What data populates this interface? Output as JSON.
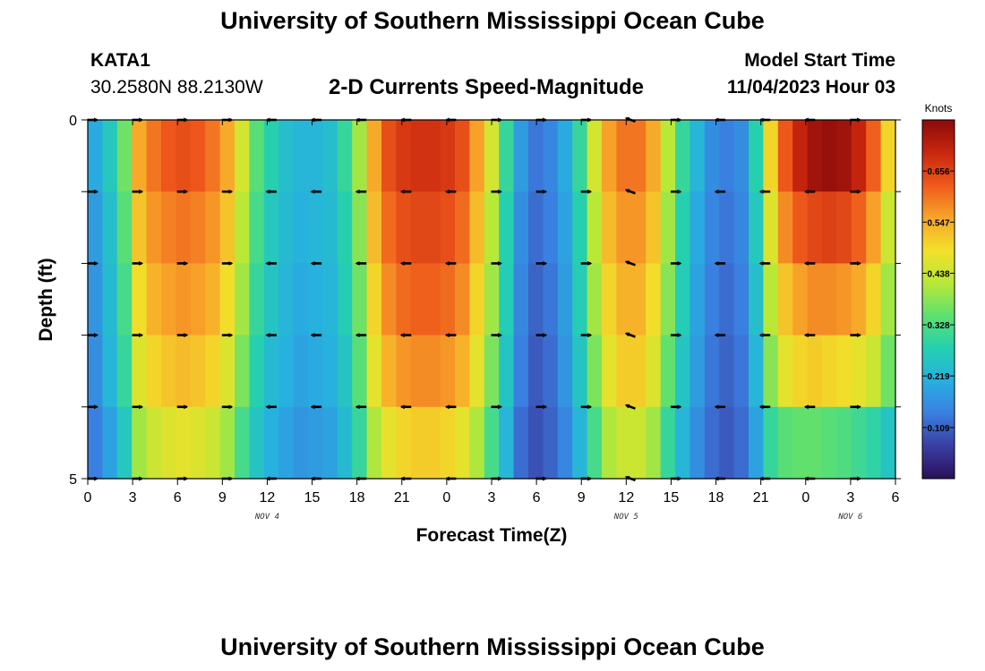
{
  "header": {
    "title": "University of Southern Mississippi Ocean Cube",
    "station": "KATA1",
    "coords": "30.2580N  88.2130W",
    "subtitle": "2-D Currents Speed-Magnitude",
    "model_start_label": "Model Start Time",
    "model_start_value": "11/04/2023 Hour 03"
  },
  "footer": {
    "title": "University of Southern Mississippi Ocean Cube"
  },
  "colors": {
    "stops": [
      "#2b0f5a",
      "#3a3ea3",
      "#3a7fe0",
      "#27b0e0",
      "#25d0b0",
      "#5ee070",
      "#b8e838",
      "#f2e02a",
      "#f7a52a",
      "#ef5a1c",
      "#c8260e",
      "#8b0a0a"
    ]
  },
  "chart_data": {
    "type": "heatmap",
    "title": "2-D Currents Speed-Magnitude",
    "xlabel": "Forecast Time(Z)",
    "ylabel": "Depth (ft)",
    "x_tick_labels": [
      "0",
      "3",
      "6",
      "9",
      "12",
      "15",
      "18",
      "21",
      "0",
      "3",
      "6",
      "9",
      "12",
      "15",
      "18",
      "21",
      "0",
      "3",
      "6"
    ],
    "x_range_hours": [
      0,
      54
    ],
    "y_tick_labels": [
      "0",
      "5"
    ],
    "y_range_ft": [
      0,
      5
    ],
    "date_labels": [
      {
        "text": "NOV 4",
        "hour": 12
      },
      {
        "text": "NOV 5",
        "hour": 36
      },
      {
        "text": "NOV 6",
        "hour": 51
      }
    ],
    "colorbar": {
      "label": "Knots",
      "min": 0.0,
      "max": 0.765,
      "ticks": [
        "0.109",
        "0.219",
        "0.328",
        "0.438",
        "0.547",
        "0.656"
      ]
    },
    "depth_layers": 5,
    "time_steps": 55,
    "speed_field_knots": [
      [
        0.2,
        0.26,
        0.36,
        0.55,
        0.6,
        0.63,
        0.64,
        0.63,
        0.6,
        0.55,
        0.45,
        0.34,
        0.28,
        0.24,
        0.22,
        0.22,
        0.24,
        0.3,
        0.4,
        0.55,
        0.64,
        0.67,
        0.68,
        0.68,
        0.67,
        0.64,
        0.56,
        0.45,
        0.3,
        0.18,
        0.13,
        0.15,
        0.2,
        0.3,
        0.45,
        0.56,
        0.6,
        0.6,
        0.55,
        0.42,
        0.3,
        0.22,
        0.16,
        0.14,
        0.16,
        0.28,
        0.5,
        0.63,
        0.7,
        0.74,
        0.75,
        0.74,
        0.7,
        0.62,
        0.5
      ],
      [
        0.18,
        0.24,
        0.34,
        0.52,
        0.57,
        0.59,
        0.6,
        0.59,
        0.57,
        0.52,
        0.42,
        0.32,
        0.26,
        0.23,
        0.21,
        0.22,
        0.23,
        0.28,
        0.38,
        0.53,
        0.61,
        0.64,
        0.65,
        0.65,
        0.64,
        0.61,
        0.53,
        0.42,
        0.28,
        0.16,
        0.12,
        0.14,
        0.19,
        0.28,
        0.42,
        0.53,
        0.57,
        0.57,
        0.52,
        0.4,
        0.28,
        0.2,
        0.15,
        0.13,
        0.15,
        0.26,
        0.46,
        0.58,
        0.63,
        0.65,
        0.66,
        0.65,
        0.62,
        0.56,
        0.44
      ],
      [
        0.17,
        0.23,
        0.32,
        0.49,
        0.54,
        0.56,
        0.57,
        0.56,
        0.54,
        0.49,
        0.4,
        0.3,
        0.25,
        0.22,
        0.2,
        0.21,
        0.22,
        0.27,
        0.36,
        0.5,
        0.58,
        0.61,
        0.62,
        0.62,
        0.61,
        0.58,
        0.5,
        0.4,
        0.27,
        0.15,
        0.11,
        0.13,
        0.18,
        0.27,
        0.4,
        0.5,
        0.54,
        0.54,
        0.49,
        0.38,
        0.27,
        0.19,
        0.14,
        0.12,
        0.14,
        0.24,
        0.42,
        0.52,
        0.56,
        0.58,
        0.58,
        0.57,
        0.55,
        0.5,
        0.4
      ],
      [
        0.16,
        0.22,
        0.3,
        0.46,
        0.5,
        0.52,
        0.53,
        0.52,
        0.5,
        0.46,
        0.37,
        0.28,
        0.23,
        0.21,
        0.19,
        0.2,
        0.21,
        0.25,
        0.34,
        0.47,
        0.54,
        0.57,
        0.58,
        0.58,
        0.57,
        0.54,
        0.47,
        0.37,
        0.25,
        0.14,
        0.1,
        0.12,
        0.17,
        0.25,
        0.37,
        0.47,
        0.51,
        0.51,
        0.46,
        0.35,
        0.25,
        0.18,
        0.13,
        0.11,
        0.13,
        0.22,
        0.38,
        0.47,
        0.5,
        0.51,
        0.5,
        0.49,
        0.47,
        0.44,
        0.36
      ],
      [
        0.14,
        0.19,
        0.26,
        0.4,
        0.44,
        0.46,
        0.47,
        0.46,
        0.44,
        0.4,
        0.32,
        0.25,
        0.21,
        0.19,
        0.17,
        0.18,
        0.19,
        0.23,
        0.3,
        0.41,
        0.47,
        0.5,
        0.51,
        0.51,
        0.5,
        0.47,
        0.41,
        0.32,
        0.22,
        0.12,
        0.09,
        0.11,
        0.15,
        0.22,
        0.32,
        0.41,
        0.44,
        0.44,
        0.4,
        0.3,
        0.22,
        0.16,
        0.12,
        0.1,
        0.12,
        0.19,
        0.3,
        0.34,
        0.35,
        0.35,
        0.34,
        0.33,
        0.31,
        0.29,
        0.25
      ]
    ],
    "arrow_hours": [
      0,
      3,
      6,
      9,
      12,
      15,
      18,
      21,
      24,
      27,
      30,
      33,
      36,
      39,
      42,
      45,
      48,
      51
    ],
    "arrow_directions_deg": [
      0,
      0,
      0,
      0,
      180,
      180,
      180,
      180,
      180,
      0,
      0,
      0,
      200,
      0,
      180,
      180,
      180,
      0
    ]
  }
}
